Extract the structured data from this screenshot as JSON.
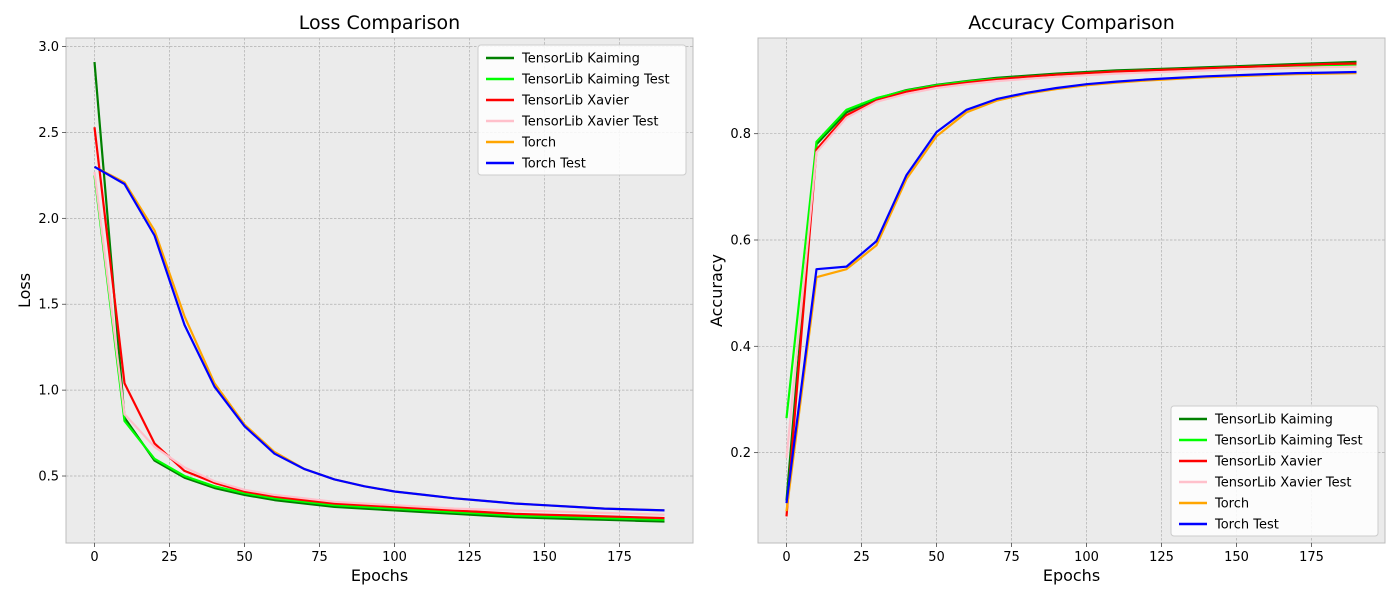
{
  "chart_data": [
    {
      "type": "line",
      "title": "Loss Comparison",
      "xlabel": "Epochs",
      "ylabel": "Loss",
      "xlim": [
        -9.5,
        199.5
      ],
      "ylim": [
        0.11,
        3.05
      ],
      "xticks": [
        0,
        25,
        50,
        75,
        100,
        125,
        150,
        175
      ],
      "yticks": [
        0.5,
        1.0,
        1.5,
        2.0,
        2.5,
        3.0
      ],
      "ytick_format": 1,
      "grid": true,
      "legend_position": "top-right",
      "x": [
        0,
        10,
        20,
        30,
        40,
        50,
        60,
        70,
        80,
        90,
        100,
        110,
        120,
        130,
        140,
        150,
        160,
        170,
        180,
        190
      ],
      "series": [
        {
          "name": "TensorLib Kaiming",
          "color": "#008000",
          "values": [
            2.91,
            0.84,
            0.59,
            0.49,
            0.43,
            0.39,
            0.36,
            0.34,
            0.32,
            0.31,
            0.3,
            0.29,
            0.28,
            0.27,
            0.26,
            0.255,
            0.25,
            0.245,
            0.24,
            0.235
          ]
        },
        {
          "name": "TensorLib Kaiming Test",
          "color": "#00ff00",
          "values": [
            2.25,
            0.82,
            0.6,
            0.5,
            0.44,
            0.4,
            0.37,
            0.35,
            0.33,
            0.32,
            0.31,
            0.3,
            0.29,
            0.28,
            0.27,
            0.265,
            0.26,
            0.255,
            0.25,
            0.245
          ]
        },
        {
          "name": "TensorLib Xavier",
          "color": "#ff0000",
          "values": [
            2.53,
            1.04,
            0.69,
            0.53,
            0.46,
            0.41,
            0.38,
            0.36,
            0.34,
            0.33,
            0.32,
            0.31,
            0.3,
            0.29,
            0.28,
            0.275,
            0.27,
            0.265,
            0.26,
            0.255
          ]
        },
        {
          "name": "TensorLib Xavier Test",
          "color": "#ffc0cb",
          "values": [
            2.27,
            0.86,
            0.67,
            0.55,
            0.47,
            0.42,
            0.39,
            0.37,
            0.35,
            0.34,
            0.33,
            0.32,
            0.31,
            0.305,
            0.3,
            0.295,
            0.29,
            0.285,
            0.28,
            0.275
          ]
        },
        {
          "name": "Torch",
          "color": "#ffa500",
          "values": [
            2.3,
            2.21,
            1.93,
            1.43,
            1.04,
            0.8,
            0.64,
            0.54,
            0.48,
            0.44,
            0.41,
            0.39,
            0.37,
            0.355,
            0.34,
            0.33,
            0.32,
            0.31,
            0.305,
            0.3
          ]
        },
        {
          "name": "Torch Test",
          "color": "#0000ff",
          "values": [
            2.3,
            2.2,
            1.9,
            1.38,
            1.02,
            0.79,
            0.63,
            0.54,
            0.48,
            0.44,
            0.41,
            0.39,
            0.37,
            0.355,
            0.34,
            0.33,
            0.32,
            0.31,
            0.305,
            0.3
          ]
        }
      ]
    },
    {
      "type": "line",
      "title": "Accuracy Comparison",
      "xlabel": "Epochs",
      "ylabel": "Accuracy",
      "xlim": [
        -9.5,
        199.5
      ],
      "ylim": [
        0.03,
        0.98
      ],
      "xticks": [
        0,
        25,
        50,
        75,
        100,
        125,
        150,
        175
      ],
      "yticks": [
        0.2,
        0.4,
        0.6,
        0.8
      ],
      "ytick_format": 1,
      "grid": true,
      "legend_position": "bottom-right",
      "x": [
        0,
        10,
        20,
        30,
        40,
        50,
        60,
        70,
        80,
        90,
        100,
        110,
        120,
        130,
        140,
        150,
        160,
        170,
        180,
        190
      ],
      "series": [
        {
          "name": "TensorLib Kaiming",
          "color": "#008000",
          "values": [
            0.11,
            0.78,
            0.84,
            0.866,
            0.882,
            0.892,
            0.899,
            0.905,
            0.909,
            0.913,
            0.916,
            0.919,
            0.921,
            0.923,
            0.925,
            0.927,
            0.929,
            0.931,
            0.933,
            0.935
          ]
        },
        {
          "name": "TensorLib Kaiming Test",
          "color": "#00ff00",
          "values": [
            0.265,
            0.785,
            0.845,
            0.867,
            0.881,
            0.891,
            0.898,
            0.903,
            0.907,
            0.911,
            0.914,
            0.917,
            0.919,
            0.921,
            0.923,
            0.925,
            0.927,
            0.928,
            0.929,
            0.93
          ]
        },
        {
          "name": "TensorLib Xavier",
          "color": "#ff0000",
          "values": [
            0.08,
            0.77,
            0.835,
            0.862,
            0.879,
            0.889,
            0.896,
            0.902,
            0.907,
            0.911,
            0.914,
            0.917,
            0.919,
            0.921,
            0.923,
            0.925,
            0.927,
            0.929,
            0.931,
            0.932
          ]
        },
        {
          "name": "TensorLib Xavier Test",
          "color": "#ffc0cb",
          "values": [
            0.19,
            0.765,
            0.83,
            0.86,
            0.875,
            0.886,
            0.893,
            0.899,
            0.903,
            0.907,
            0.91,
            0.913,
            0.915,
            0.917,
            0.919,
            0.921,
            0.922,
            0.924,
            0.925,
            0.926
          ]
        },
        {
          "name": "Torch",
          "color": "#ffa500",
          "values": [
            0.09,
            0.53,
            0.545,
            0.59,
            0.715,
            0.795,
            0.84,
            0.862,
            0.875,
            0.884,
            0.891,
            0.896,
            0.9,
            0.903,
            0.906,
            0.908,
            0.91,
            0.912,
            0.913,
            0.914
          ]
        },
        {
          "name": "Torch Test",
          "color": "#0000ff",
          "values": [
            0.105,
            0.545,
            0.55,
            0.598,
            0.722,
            0.803,
            0.845,
            0.865,
            0.877,
            0.886,
            0.893,
            0.898,
            0.902,
            0.905,
            0.908,
            0.91,
            0.912,
            0.914,
            0.915,
            0.916
          ]
        }
      ]
    }
  ]
}
